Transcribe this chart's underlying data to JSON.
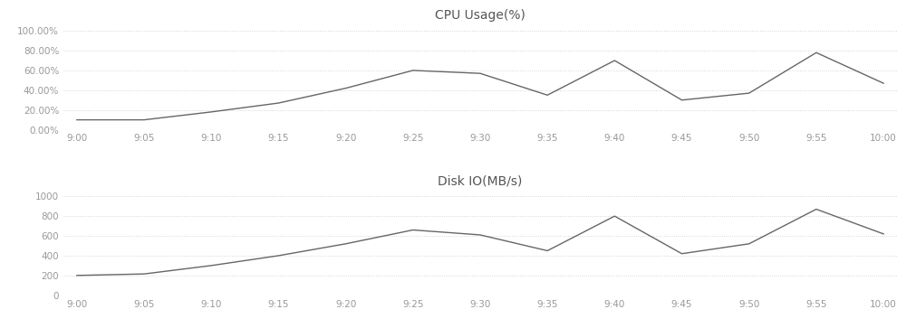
{
  "cpu_title": "CPU Usage(%)",
  "disk_title": "Disk IO(MB/s)",
  "x_labels": [
    "9:00",
    "9:05",
    "9:10",
    "9:15",
    "9:20",
    "9:25",
    "9:30",
    "9:35",
    "9:40",
    "9:45",
    "9:50",
    "9:55",
    "10:00"
  ],
  "cpu_values": [
    0.1,
    0.1,
    0.18,
    0.27,
    0.42,
    0.6,
    0.57,
    0.35,
    0.7,
    0.3,
    0.37,
    0.78,
    0.47
  ],
  "cpu_yticks": [
    0.0,
    0.2,
    0.4,
    0.6,
    0.8,
    1.0
  ],
  "cpu_ytick_labels": [
    "0.00%",
    "20.00%",
    "40.00%",
    "60.00%",
    "80.00%",
    "100.00%"
  ],
  "cpu_ylim": [
    0.0,
    1.08
  ],
  "disk_values": [
    200,
    215,
    300,
    400,
    520,
    660,
    610,
    450,
    800,
    420,
    520,
    870,
    620
  ],
  "disk_yticks": [
    0,
    200,
    400,
    600,
    800,
    1000
  ],
  "disk_ylim": [
    0,
    1080
  ],
  "line_color": "#666666",
  "grid_color": "#cccccc",
  "bg_color": "#ffffff",
  "title_color": "#555555",
  "tick_color": "#999999",
  "title_fontsize": 10,
  "tick_fontsize": 7.5
}
